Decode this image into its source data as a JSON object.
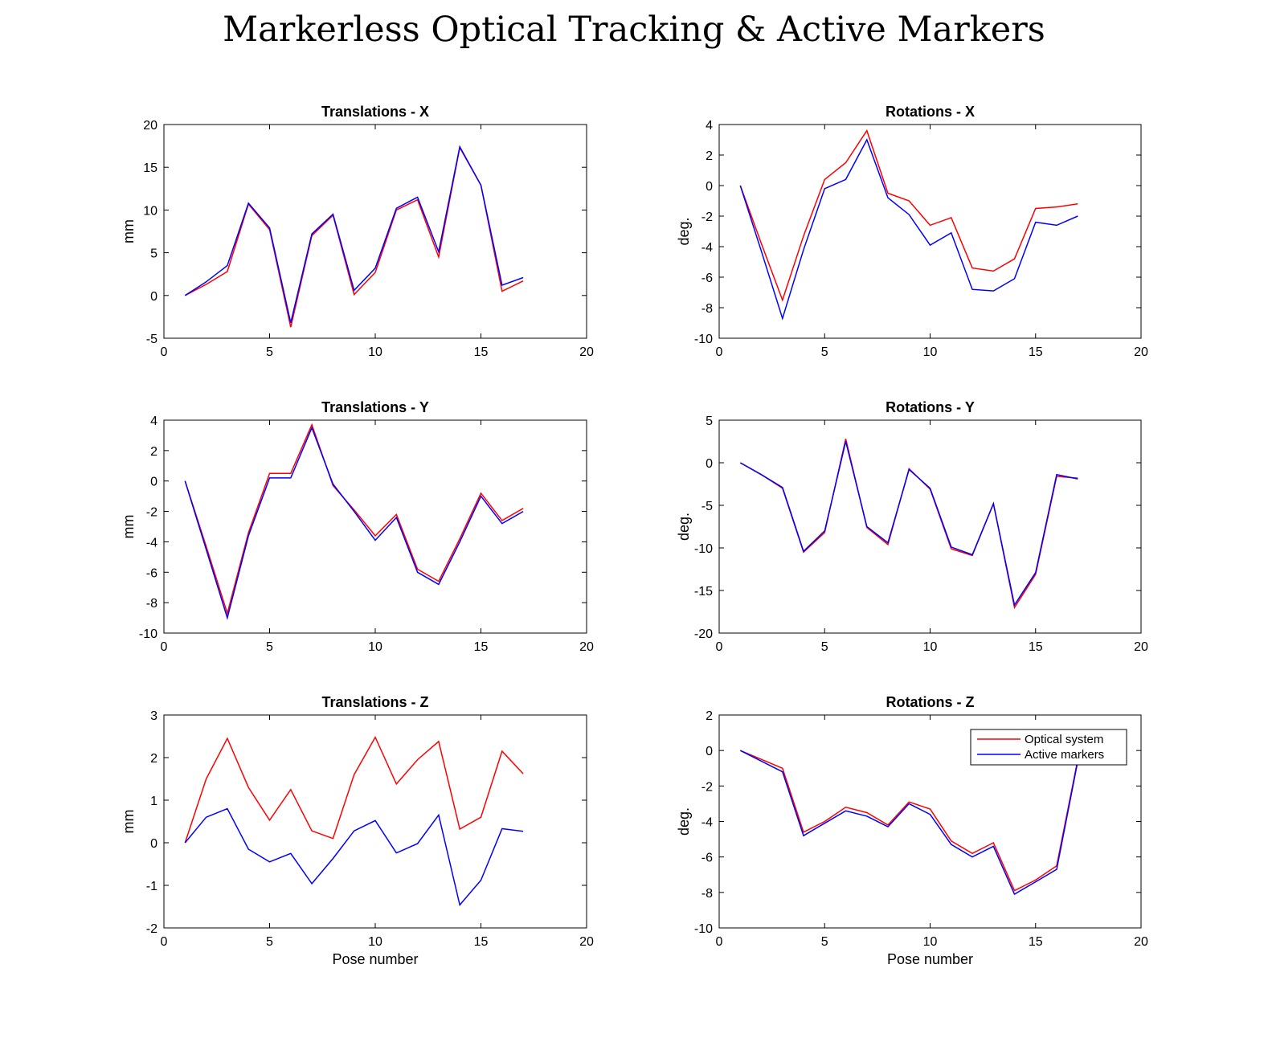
{
  "title": "Markerless Optical Tracking & Active Markers",
  "colors": {
    "optical": "#ff0000",
    "active": "#0000ff",
    "axis": "#000000"
  },
  "legend": {
    "entries": [
      "Optical system",
      "Active markers"
    ],
    "placement": "top-right",
    "panel": 5
  },
  "chart_data": [
    {
      "type": "line",
      "title": "Translations - X",
      "xlabel": "",
      "ylabel": "mm",
      "xlim": [
        0,
        20
      ],
      "ylim": [
        -5,
        20
      ],
      "xticks": [
        0,
        5,
        10,
        15,
        20
      ],
      "yticks": [
        -5,
        0,
        5,
        10,
        15,
        20
      ],
      "x": [
        1,
        2,
        3,
        4,
        5,
        6,
        7,
        8,
        9,
        10,
        11,
        12,
        13,
        14,
        15,
        16,
        17
      ],
      "series": [
        {
          "name": "Optical system",
          "values": [
            0,
            1.3,
            2.8,
            10.7,
            7.7,
            -3.7,
            7.0,
            9.4,
            0.1,
            2.7,
            10.0,
            11.2,
            4.5,
            17.3,
            12.9,
            0.5,
            1.7
          ]
        },
        {
          "name": "Active markers",
          "values": [
            0,
            1.6,
            3.5,
            10.8,
            7.9,
            -3.2,
            7.2,
            9.5,
            0.6,
            3.2,
            10.2,
            11.5,
            5.1,
            17.4,
            12.9,
            1.2,
            2.1
          ]
        }
      ]
    },
    {
      "type": "line",
      "title": "Rotations - X",
      "xlabel": "",
      "ylabel": "deg.",
      "xlim": [
        0,
        20
      ],
      "ylim": [
        -10,
        4
      ],
      "xticks": [
        0,
        5,
        10,
        15,
        20
      ],
      "yticks": [
        -10,
        -8,
        -6,
        -4,
        -2,
        0,
        2,
        4
      ],
      "x": [
        1,
        2,
        3,
        4,
        5,
        6,
        7,
        8,
        9,
        10,
        11,
        12,
        13,
        14,
        15,
        16,
        17
      ],
      "series": [
        {
          "name": "Optical system",
          "values": [
            0,
            -3.8,
            -7.5,
            -3.3,
            0.4,
            1.5,
            3.6,
            -0.5,
            -1.0,
            -2.6,
            -2.1,
            -5.4,
            -5.6,
            -4.8,
            -1.5,
            -1.4,
            -1.2
          ]
        },
        {
          "name": "Active markers",
          "values": [
            0,
            -4.3,
            -8.7,
            -4.2,
            -0.2,
            0.4,
            3.0,
            -0.8,
            -1.9,
            -3.9,
            -3.1,
            -6.8,
            -6.9,
            -6.1,
            -2.4,
            -2.6,
            -2.0
          ]
        }
      ]
    },
    {
      "type": "line",
      "title": "Translations - Y",
      "xlabel": "",
      "ylabel": "mm",
      "xlim": [
        0,
        20
      ],
      "ylim": [
        -10,
        4
      ],
      "xticks": [
        0,
        5,
        10,
        15,
        20
      ],
      "yticks": [
        -10,
        -8,
        -6,
        -4,
        -2,
        0,
        2,
        4
      ],
      "x": [
        1,
        2,
        3,
        4,
        5,
        6,
        7,
        8,
        9,
        10,
        11,
        12,
        13,
        14,
        15,
        16,
        17
      ],
      "series": [
        {
          "name": "Optical system",
          "values": [
            0,
            -4.3,
            -8.7,
            -3.4,
            0.5,
            0.5,
            3.7,
            -0.3,
            -1.9,
            -3.6,
            -2.2,
            -5.8,
            -6.6,
            -3.8,
            -0.8,
            -2.6,
            -1.8
          ]
        },
        {
          "name": "Active markers",
          "values": [
            0,
            -4.5,
            -9.0,
            -3.6,
            0.2,
            0.2,
            3.5,
            -0.2,
            -2.0,
            -3.9,
            -2.4,
            -6.0,
            -6.8,
            -4.0,
            -1.0,
            -2.8,
            -2.0
          ]
        }
      ]
    },
    {
      "type": "line",
      "title": "Rotations - Y",
      "xlabel": "",
      "ylabel": "deg.",
      "xlim": [
        0,
        20
      ],
      "ylim": [
        -20,
        5
      ],
      "xticks": [
        0,
        5,
        10,
        15,
        20
      ],
      "yticks": [
        -20,
        -15,
        -10,
        -5,
        0,
        5
      ],
      "x": [
        1,
        2,
        3,
        4,
        5,
        6,
        7,
        8,
        9,
        10,
        11,
        12,
        13,
        14,
        15,
        16,
        17
      ],
      "series": [
        {
          "name": "Optical system",
          "values": [
            0,
            -1.4,
            -3.0,
            -10.5,
            -8.2,
            2.8,
            -7.6,
            -9.6,
            -0.7,
            -3.1,
            -10.1,
            -10.9,
            -4.8,
            -17.0,
            -13.1,
            -1.6,
            -1.8
          ]
        },
        {
          "name": "Active markers",
          "values": [
            0,
            -1.4,
            -2.9,
            -10.4,
            -8.0,
            2.5,
            -7.5,
            -9.4,
            -0.8,
            -3.0,
            -9.9,
            -10.8,
            -4.8,
            -16.7,
            -12.9,
            -1.4,
            -1.9
          ]
        }
      ]
    },
    {
      "type": "line",
      "title": "Translations - Z",
      "xlabel": "Pose number",
      "ylabel": "mm",
      "xlim": [
        0,
        20
      ],
      "ylim": [
        -2,
        3
      ],
      "xticks": [
        0,
        5,
        10,
        15,
        20
      ],
      "yticks": [
        -2,
        -1,
        0,
        1,
        2,
        3
      ],
      "x": [
        1,
        2,
        3,
        4,
        5,
        6,
        7,
        8,
        9,
        10,
        11,
        12,
        13,
        14,
        15,
        16,
        17
      ],
      "series": [
        {
          "name": "Optical system",
          "values": [
            0,
            1.5,
            2.45,
            1.3,
            0.53,
            1.25,
            0.28,
            0.1,
            1.6,
            2.48,
            1.38,
            1.95,
            2.38,
            0.32,
            0.6,
            2.15,
            1.62
          ]
        },
        {
          "name": "Active markers",
          "values": [
            0,
            0.6,
            0.8,
            -0.15,
            -0.45,
            -0.25,
            -0.96,
            -0.37,
            0.28,
            0.52,
            -0.24,
            -0.02,
            0.65,
            -1.46,
            -0.88,
            0.33,
            0.27
          ]
        }
      ]
    },
    {
      "type": "line",
      "title": "Rotations - Z",
      "xlabel": "Pose number",
      "ylabel": "deg.",
      "xlim": [
        0,
        20
      ],
      "ylim": [
        -10,
        2
      ],
      "xticks": [
        0,
        5,
        10,
        15,
        20
      ],
      "yticks": [
        -10,
        -8,
        -6,
        -4,
        -2,
        0,
        2
      ],
      "x": [
        1,
        2,
        3,
        4,
        5,
        6,
        7,
        8,
        9,
        10,
        11,
        12,
        13,
        14,
        15,
        16,
        17
      ],
      "series": [
        {
          "name": "Optical system",
          "values": [
            0,
            -0.5,
            -1.0,
            -4.6,
            -4.0,
            -3.2,
            -3.5,
            -4.2,
            -2.9,
            -3.3,
            -5.1,
            -5.8,
            -5.2,
            -7.9,
            -7.3,
            -6.5,
            -0.5
          ]
        },
        {
          "name": "Active markers",
          "values": [
            0,
            -0.6,
            -1.2,
            -4.8,
            -4.1,
            -3.4,
            -3.7,
            -4.3,
            -3.0,
            -3.6,
            -5.3,
            -6.0,
            -5.4,
            -8.1,
            -7.4,
            -6.7,
            -0.6
          ]
        }
      ]
    }
  ]
}
